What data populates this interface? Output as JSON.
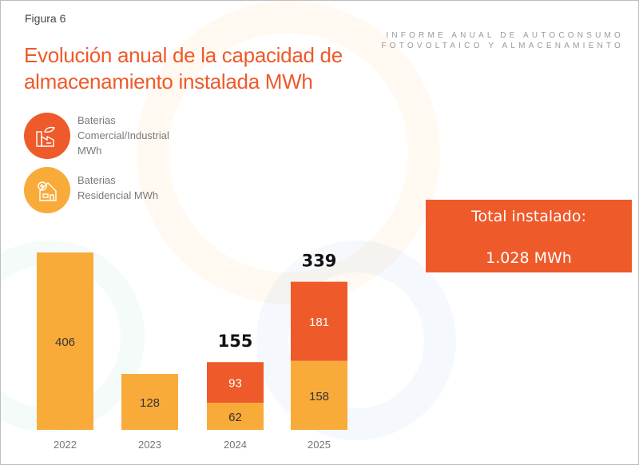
{
  "figure_label": "Figura 6",
  "report_header": [
    "INFORME ANUAL DE AUTOCONSUMO",
    "FOTOVOLTAICO Y ALMACENAMIENTO"
  ],
  "total_box": {
    "label": "Total instalado:",
    "value": "1.028 MWh",
    "color": "#ee5a2a"
  },
  "chart_data": {
    "type": "bar",
    "stacked": true,
    "title": "Evolución anual de la capacidad de almacenamiento instalada MWh",
    "categories": [
      "2022",
      "2023",
      "2024",
      "2025"
    ],
    "series": [
      {
        "name": "Baterias Residencial MWh",
        "values": [
          406,
          128,
          62,
          158
        ],
        "color": "#f9ab3a",
        "icon": "house-icon"
      },
      {
        "name": "Baterias Comercial/Industrial MWh",
        "values": [
          0,
          0,
          93,
          181
        ],
        "color": "#ee5a2a",
        "icon": "factory-icon"
      }
    ],
    "totals": [
      "",
      "",
      "155",
      "339"
    ],
    "legend": "top-left",
    "grid": false
  }
}
